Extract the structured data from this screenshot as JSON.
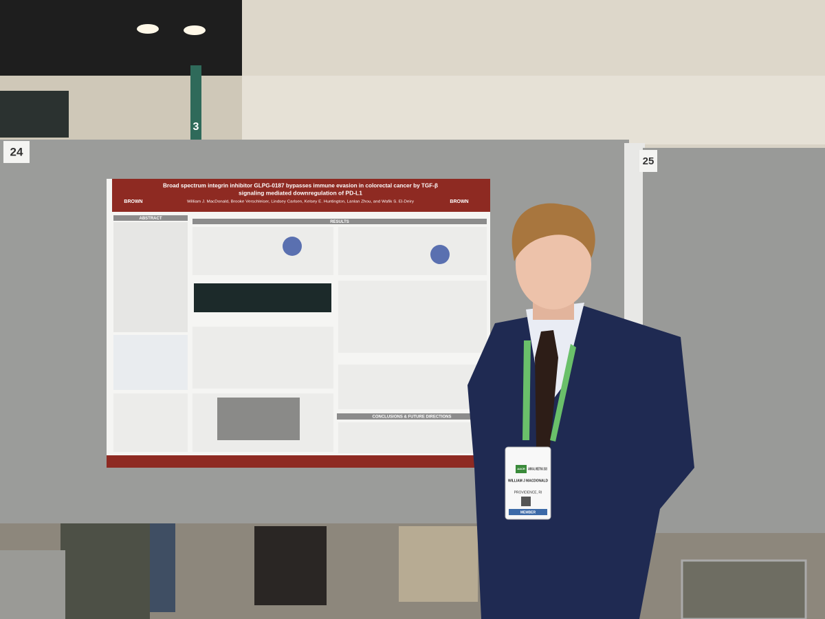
{
  "booth_numbers": [
    "24",
    "25"
  ],
  "sign": "3",
  "poster": {
    "title_lines": [
      "Broad spectrum integrin inhibitor GLPG-0187 bypasses immune evasion in colorectal cancer by TGF-β",
      "signaling mediated downregulation of PD-L1"
    ],
    "authors": "William J. MacDonald, Brooke Verschleiser, Lindsey Carlsen, Kelsey E. Huntington, Lanlan Zhou, and Wafik S. El-Deiry",
    "logo_left": "BROWN",
    "logo_right": "BROWN",
    "sections": [
      "ABSTRACT",
      "RESULTS",
      "CONCLUSIONS & FUTURE DIRECTIONS"
    ]
  },
  "badge": {
    "org": "AACR",
    "event": "ANNUAL MEETING 2023",
    "name": "WILLIAM J MACDONALD",
    "location": "PROVIDENCE, RI",
    "type": "MEMBER"
  }
}
